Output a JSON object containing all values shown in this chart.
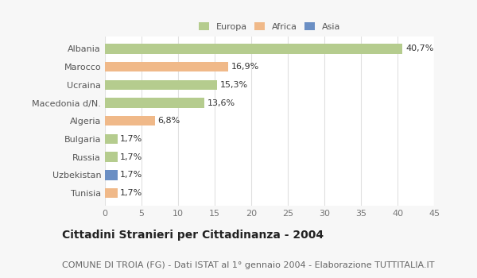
{
  "categories": [
    "Albania",
    "Marocco",
    "Ucraina",
    "Macedonia d/N.",
    "Algeria",
    "Bulgaria",
    "Russia",
    "Uzbekistan",
    "Tunisia"
  ],
  "values": [
    40.7,
    16.9,
    15.3,
    13.6,
    6.8,
    1.7,
    1.7,
    1.7,
    1.7
  ],
  "labels": [
    "40,7%",
    "16,9%",
    "15,3%",
    "13,6%",
    "6,8%",
    "1,7%",
    "1,7%",
    "1,7%",
    "1,7%"
  ],
  "colors": [
    "#b5cc8e",
    "#f0b989",
    "#b5cc8e",
    "#b5cc8e",
    "#f0b989",
    "#b5cc8e",
    "#b5cc8e",
    "#6b8fc4",
    "#f0b989"
  ],
  "legend_labels": [
    "Europa",
    "Africa",
    "Asia"
  ],
  "legend_colors": [
    "#b5cc8e",
    "#f0b989",
    "#6b8fc4"
  ],
  "title": "Cittadini Stranieri per Cittadinanza - 2004",
  "subtitle": "COMUNE DI TROIA (FG) - Dati ISTAT al 1° gennaio 2004 - Elaborazione TUTTITALIA.IT",
  "xlim": [
    0,
    45
  ],
  "xticks": [
    0,
    5,
    10,
    15,
    20,
    25,
    30,
    35,
    40,
    45
  ],
  "bg_color": "#f7f7f7",
  "plot_bg_color": "#ffffff",
  "grid_color": "#e0e0e0",
  "title_fontsize": 10,
  "subtitle_fontsize": 8,
  "label_fontsize": 8,
  "tick_fontsize": 8,
  "bar_height": 0.55
}
